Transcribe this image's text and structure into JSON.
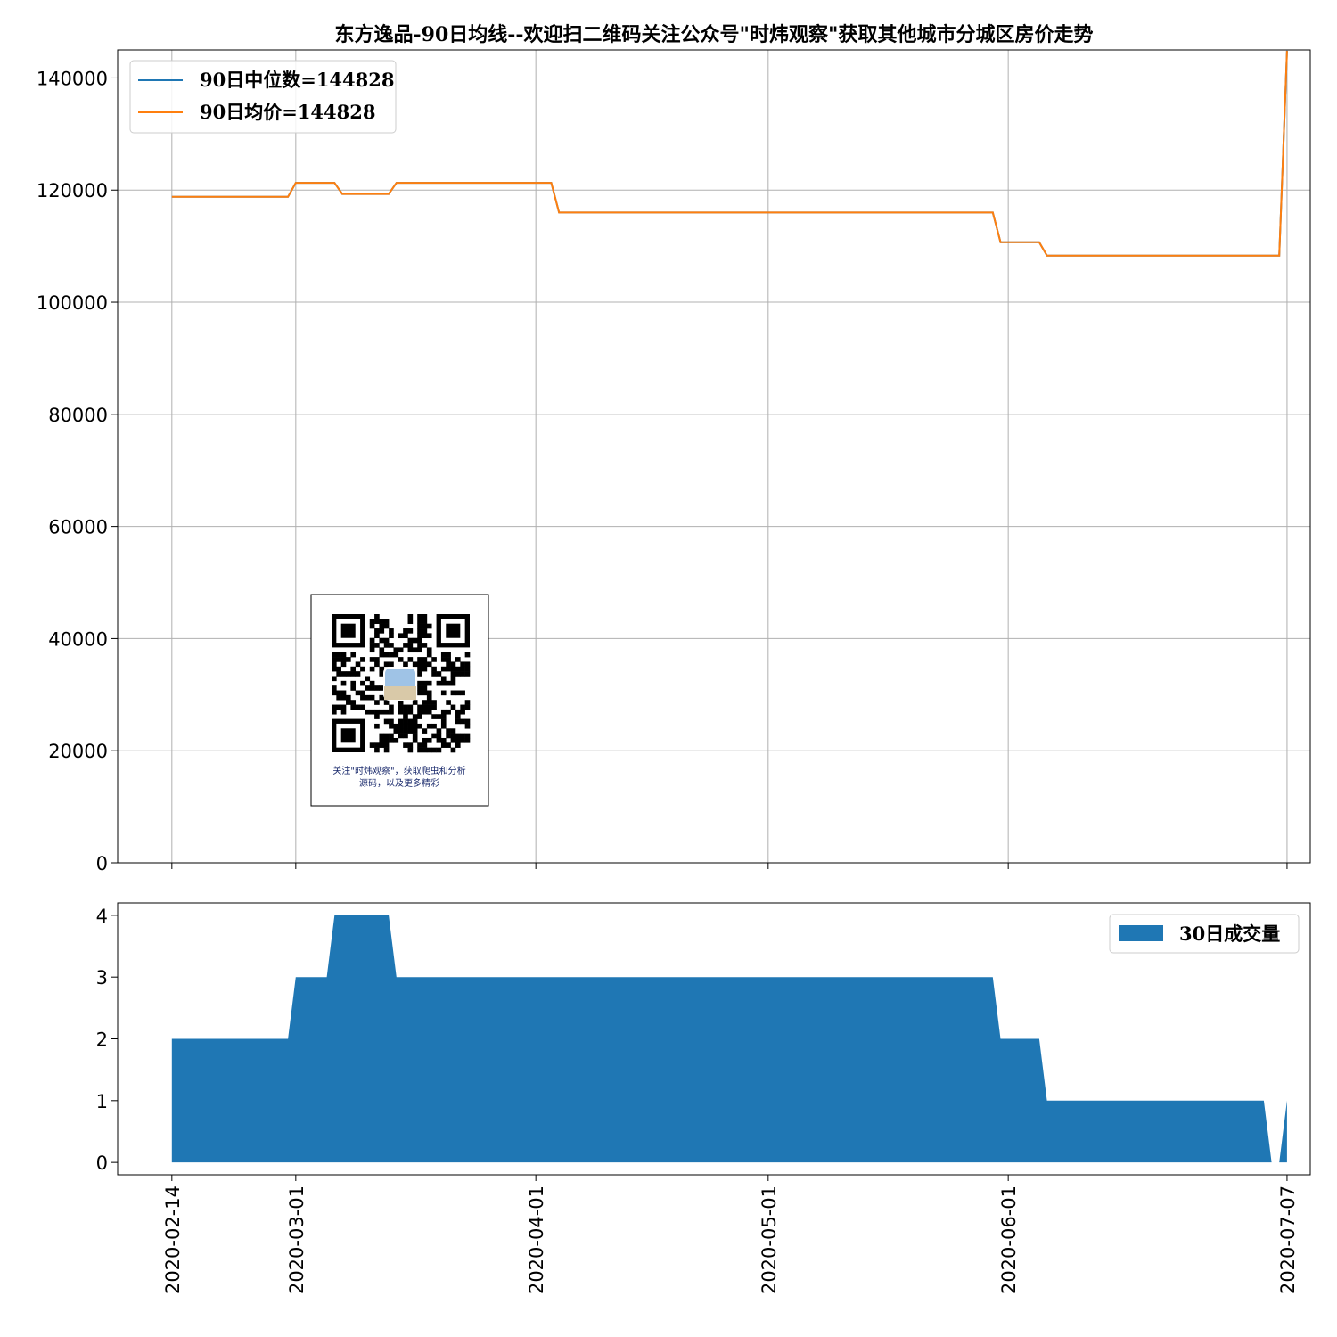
{
  "chart_data": [
    {
      "type": "line",
      "title": "东方逸品-90日均线--欢迎扫二维码关注公众号\"时炜观察\"获取其他城市分城区房价走势",
      "ylim": [
        0,
        145000
      ],
      "yticks": [
        "0",
        "20000",
        "40000",
        "60000",
        "80000",
        "100000",
        "120000",
        "140000"
      ],
      "grid": true,
      "legend_position": "top-left",
      "colors": {
        "median": "#1f77b4",
        "mean": "#ff7f0e"
      },
      "series": [
        {
          "name": "90日中位数=144828",
          "x": [
            "2020-02-14",
            "2020-02-29",
            "2020-03-01",
            "2020-03-06",
            "2020-03-07",
            "2020-03-13",
            "2020-03-14",
            "2020-04-03",
            "2020-04-04",
            "2020-05-30",
            "2020-05-31",
            "2020-06-05",
            "2020-06-06",
            "2020-07-06",
            "2020-07-07"
          ],
          "values": [
            118800,
            118800,
            121300,
            121300,
            119300,
            119300,
            121300,
            121300,
            116000,
            116000,
            110700,
            110700,
            108300,
            108300,
            144828
          ]
        },
        {
          "name": "90日均价=144828",
          "x": [
            "2020-02-14",
            "2020-02-29",
            "2020-03-01",
            "2020-03-06",
            "2020-03-07",
            "2020-03-13",
            "2020-03-14",
            "2020-04-03",
            "2020-04-04",
            "2020-05-30",
            "2020-05-31",
            "2020-06-05",
            "2020-06-06",
            "2020-07-06",
            "2020-07-07"
          ],
          "values": [
            118800,
            118800,
            121300,
            121300,
            119300,
            119300,
            121300,
            121300,
            116000,
            116000,
            110700,
            110700,
            108300,
            108300,
            144828
          ]
        }
      ]
    },
    {
      "type": "area",
      "ylim": [
        -0.2,
        4.2
      ],
      "yticks": [
        "0",
        "1",
        "2",
        "3",
        "4"
      ],
      "grid": false,
      "legend_position": "top-right",
      "colors": {
        "volume": "#1f77b4"
      },
      "series": [
        {
          "name": "30日成交量",
          "x": [
            "2020-02-14",
            "2020-02-29",
            "2020-03-01",
            "2020-03-05",
            "2020-03-06",
            "2020-03-13",
            "2020-03-14",
            "2020-05-30",
            "2020-05-31",
            "2020-06-05",
            "2020-06-06",
            "2020-07-04",
            "2020-07-05",
            "2020-07-06",
            "2020-07-07"
          ],
          "values": [
            2,
            2,
            3,
            3,
            4,
            4,
            3,
            3,
            2,
            2,
            1,
            1,
            0,
            0,
            1
          ]
        }
      ]
    }
  ],
  "x_axis": {
    "range": [
      "2020-02-07",
      "2020-07-10"
    ],
    "ticks": [
      "2020-02-14",
      "2020-03-01",
      "2020-04-01",
      "2020-05-01",
      "2020-06-01",
      "2020-07-07"
    ]
  },
  "qr": {
    "caption_line1": "关注\"时炜观察\"，获取爬虫和分析",
    "caption_line2": "源码，以及更多精彩"
  }
}
